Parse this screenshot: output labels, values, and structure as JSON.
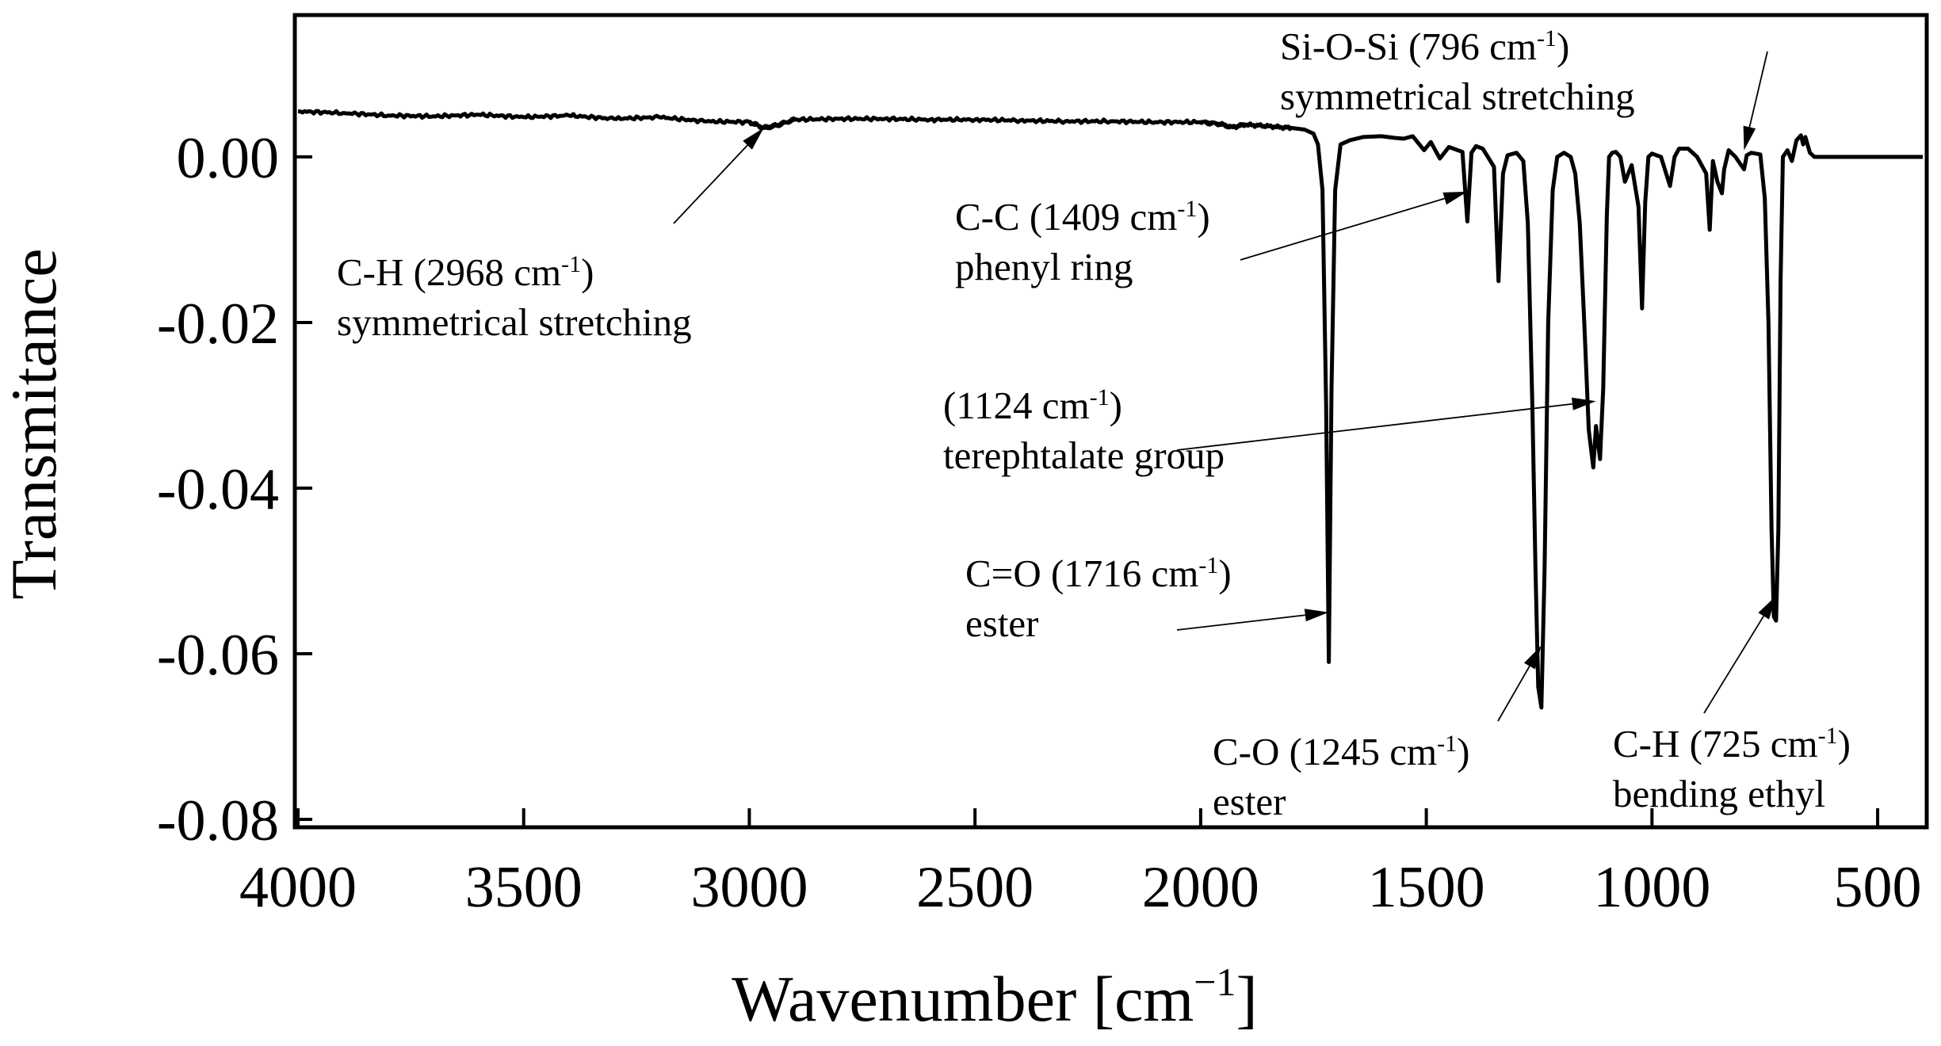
{
  "chart_data": {
    "type": "line",
    "title": "",
    "xlabel": "Wavenumber [cm",
    "xlabel_sup": "−1",
    "xlabel_end": "]",
    "ylabel": "Transmitance",
    "xlim": [
      4000,
      400
    ],
    "ylim": [
      -0.082,
      0.018
    ],
    "x_ticks": [
      4000,
      3500,
      3000,
      2500,
      2000,
      1500,
      1000,
      500
    ],
    "x_tick_labels": [
      "4000",
      "3500",
      "3000",
      "2500",
      "2000",
      "1500",
      "1000",
      "500"
    ],
    "y_ticks": [
      0.0,
      -0.02,
      -0.04,
      -0.06,
      -0.08
    ],
    "y_tick_labels": [
      "0.00",
      "-0.02",
      "-0.04",
      "-0.06",
      "-0.08"
    ],
    "grid": false,
    "series": [
      {
        "x": [
          4000,
          3900,
          3800,
          3700,
          3600,
          3500,
          3400,
          3300,
          3200,
          3100,
          3000,
          2968,
          2940,
          2900,
          2800,
          2700,
          2600,
          2500,
          2400,
          2300,
          2200,
          2100,
          2000,
          1960,
          1930,
          1900,
          1850,
          1800,
          1770,
          1750,
          1740,
          1730,
          1722,
          1716,
          1710,
          1702,
          1690,
          1670,
          1640,
          1600,
          1570,
          1550,
          1530,
          1505,
          1490,
          1470,
          1450,
          1420,
          1409,
          1400,
          1390,
          1375,
          1350,
          1340,
          1330,
          1320,
          1300,
          1285,
          1275,
          1265,
          1258,
          1252,
          1245,
          1238,
          1230,
          1220,
          1210,
          1195,
          1180,
          1170,
          1160,
          1150,
          1140,
          1130,
          1124,
          1115,
          1108,
          1100,
          1095,
          1088,
          1080,
          1070,
          1060,
          1045,
          1030,
          1022,
          1015,
          1008,
          1000,
          980,
          960,
          950,
          940,
          920,
          900,
          880,
          872,
          865,
          855,
          845,
          840,
          830,
          815,
          805,
          796,
          790,
          780,
          770,
          760,
          750,
          742,
          735,
          730,
          725,
          720,
          715,
          710,
          700,
          690,
          680,
          670,
          665,
          660,
          650,
          640,
          600,
          500,
          400
        ],
        "y": [
          0.0055,
          0.0053,
          0.005,
          0.0049,
          0.0051,
          0.0048,
          0.005,
          0.0046,
          0.0048,
          0.0043,
          0.0042,
          0.0035,
          0.0038,
          0.0045,
          0.0046,
          0.0046,
          0.0045,
          0.0045,
          0.0044,
          0.0043,
          0.0043,
          0.0042,
          0.0042,
          0.004,
          0.0036,
          0.0039,
          0.0037,
          0.0035,
          0.0033,
          0.0028,
          0.0015,
          -0.004,
          -0.03,
          -0.061,
          -0.028,
          -0.004,
          0.0015,
          0.002,
          0.0024,
          0.0025,
          0.0023,
          0.0022,
          0.0025,
          0.0008,
          0.0018,
          -0.0002,
          0.0012,
          0.0006,
          -0.0078,
          0.0005,
          0.0013,
          0.001,
          -0.0012,
          -0.015,
          -0.002,
          0.0002,
          0.0005,
          -0.0005,
          -0.008,
          -0.03,
          -0.05,
          -0.064,
          -0.0665,
          -0.05,
          -0.02,
          -0.004,
          0.0,
          0.0005,
          0.0,
          -0.002,
          -0.008,
          -0.02,
          -0.033,
          -0.0375,
          -0.0325,
          -0.0365,
          -0.028,
          -0.007,
          0.0,
          0.0005,
          0.0006,
          0.0,
          -0.003,
          -0.001,
          -0.006,
          -0.0183,
          -0.0055,
          0.0,
          0.0004,
          0.0,
          -0.0035,
          0.0,
          0.001,
          0.001,
          0.0,
          -0.002,
          -0.0088,
          -0.0005,
          -0.003,
          -0.0044,
          -0.0015,
          0.0008,
          0.0,
          -0.0008,
          -0.0015,
          0.0002,
          0.0005,
          0.0004,
          0.0003,
          -0.005,
          -0.02,
          -0.045,
          -0.0555,
          -0.056,
          -0.045,
          -0.015,
          0.0,
          0.0008,
          -0.0005,
          0.002,
          0.0026,
          0.0015,
          0.0024,
          0.0005,
          0.0,
          0.0,
          0.0,
          0.0
        ]
      }
    ],
    "annotations": [
      {
        "label": "C-H (2968 cm",
        "sup": "-1",
        "tail": ")",
        "line2": "symmetrical stretching",
        "peak_x": 2968,
        "peak_y": 0.0035
      },
      {
        "label": "C-C (1409 cm",
        "sup": "-1",
        "tail": ")",
        "line2": "phenyl ring",
        "peak_x": 1409,
        "peak_y": -0.0042
      },
      {
        "label": "Si-O-Si (796 cm",
        "sup": "-1",
        "tail": ")",
        "line2": "symmetrical stretching",
        "peak_x": 796,
        "peak_y": 0.0008
      },
      {
        "label": "(1124 cm",
        "sup": "-1",
        "tail": ")",
        "line2": "terephtalate group",
        "peak_x": 1124,
        "peak_y": -0.0295
      },
      {
        "label": "C=O (1716 cm",
        "sup": "-1",
        "tail": ")",
        "line2": "ester",
        "peak_x": 1716,
        "peak_y": -0.055
      },
      {
        "label": "C-O (1245 cm",
        "sup": "-1",
        "tail": ")",
        "line2": "ester",
        "peak_x": 1245,
        "peak_y": -0.059
      },
      {
        "label": "C-H (725 cm",
        "sup": "-1",
        "tail": ")",
        "line2": "bending ethyl",
        "peak_x": 725,
        "peak_y": -0.053
      }
    ]
  }
}
